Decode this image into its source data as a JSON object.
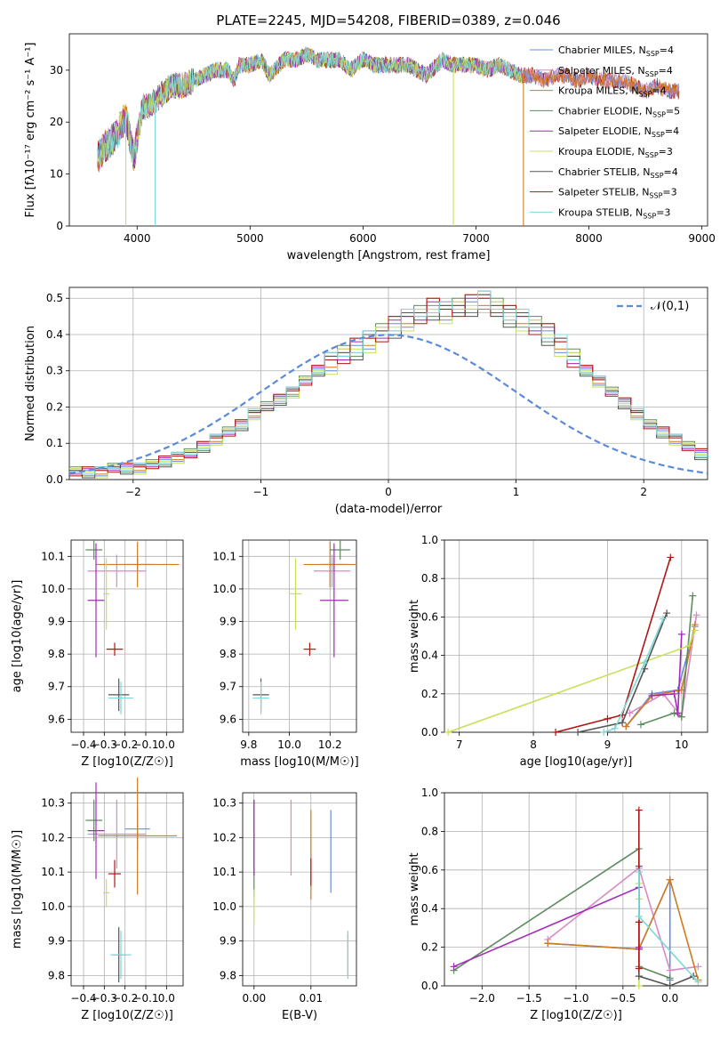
{
  "title": "PLATE=2245, MJD=54208, FIBERID=0389, z=0.046",
  "legend_labels": [
    "Chabrier MILES, N_SSP=4",
    "Salpeter MILES, N_SSP=4",
    "Kroupa MILES, N_SSP=4",
    "Chabrier ELODIE, N_SSP=5",
    "Salpeter ELODIE, N_SSP=4",
    "Kroupa ELODIE, N_SSP=3",
    "Chabrier STELIB, N_SSP=4",
    "Salpeter STELIB, N_SSP=3",
    "Kroupa STELIB, N_SSP=3"
  ],
  "colors": [
    "#6a8bdc",
    "#d98ac4",
    "#cf7b1f",
    "#5e8c5e",
    "#a22bb5",
    "#c8e05a",
    "#555555",
    "#b31414",
    "#7fd8d8"
  ],
  "chart_data": [
    {
      "type": "line",
      "id": "spectrum",
      "xlabel": "wavelength [Angstrom, rest frame]",
      "ylabel": "Flux [fλ10⁻¹⁷ erg cm⁻² s⁻¹ A⁻¹]",
      "xlim": [
        3400,
        9050
      ],
      "ylim": [
        0,
        37
      ],
      "xticks": [
        4000,
        5000,
        6000,
        7000,
        8000,
        9000
      ],
      "yticks": [
        0,
        10,
        20,
        30
      ],
      "grid": false,
      "legend": "right",
      "data_x": [
        3650,
        3700,
        3800,
        3900,
        3970,
        4050,
        4100,
        4200,
        4300,
        4400,
        4500,
        4600,
        4700,
        4800,
        4861,
        4900,
        5000,
        5100,
        5175,
        5300,
        5400,
        5500,
        5600,
        5700,
        5800,
        5890,
        6000,
        6100,
        6200,
        6300,
        6400,
        6563,
        6700,
        6800,
        6900,
        7000,
        7100,
        7200,
        7300,
        7400,
        7500,
        7600,
        7700,
        7800,
        7900,
        8000,
        8100,
        8200,
        8300,
        8400,
        8500,
        8600,
        8700,
        8800
      ],
      "data_y": [
        13,
        15,
        17,
        21,
        13,
        23,
        23,
        25,
        27,
        27,
        28,
        29,
        30,
        30,
        28,
        31,
        31,
        32,
        29,
        32,
        32,
        33,
        32,
        32,
        32,
        30,
        32,
        31,
        31,
        31,
        31,
        29,
        32,
        31,
        31,
        31,
        30,
        31,
        30,
        29,
        29,
        28,
        29,
        29,
        28,
        29,
        28,
        28,
        28,
        27,
        26,
        27,
        26,
        26
      ],
      "drops": [
        {
          "series": "Kroupa ELODIE, N_SSP=3",
          "x": 3900
        },
        {
          "series": "Kroupa STELIB, N_SSP=3",
          "x": 4160
        },
        {
          "series": "Kroupa ELODIE, N_SSP=3",
          "x": 6800
        },
        {
          "series": "Kroupa MILES, N_SSP=4",
          "x": 7420
        }
      ]
    },
    {
      "type": "step-histogram",
      "id": "residuals",
      "xlabel": "(data-model)/error",
      "ylabel": "Normed distribution",
      "xlim": [
        -2.5,
        2.5
      ],
      "ylim": [
        0,
        0.53
      ],
      "xticks": [
        -2,
        -1,
        0,
        1,
        2
      ],
      "yticks": [
        0,
        0.1,
        0.2,
        0.3,
        0.4,
        0.5
      ],
      "grid": true,
      "legend_label": "𝒩(0,1)",
      "legend": "top-right",
      "bin_width": 0.1,
      "bin_start": -2.5,
      "histogram": [
        0.02,
        0.02,
        0.02,
        0.03,
        0.03,
        0.03,
        0.04,
        0.05,
        0.06,
        0.07,
        0.09,
        0.11,
        0.13,
        0.15,
        0.18,
        0.2,
        0.22,
        0.24,
        0.27,
        0.3,
        0.32,
        0.34,
        0.36,
        0.38,
        0.4,
        0.42,
        0.44,
        0.45,
        0.47,
        0.46,
        0.47,
        0.48,
        0.49,
        0.47,
        0.45,
        0.44,
        0.42,
        0.4,
        0.37,
        0.33,
        0.3,
        0.27,
        0.24,
        0.21,
        0.18,
        0.15,
        0.13,
        0.11,
        0.09,
        0.07
      ]
    },
    {
      "type": "scatter-errorbar",
      "id": "age-vs-Z",
      "xlabel": "Z [log10(Z/Z☉)]",
      "ylabel": "age  [log10(age/yr)]",
      "xlim": [
        -0.46,
        0.08
      ],
      "ylim": [
        9.56,
        10.15
      ],
      "xticks": [
        -0.4,
        -0.3,
        -0.2,
        -0.1,
        0.0
      ],
      "yticks": [
        9.6,
        9.7,
        9.8,
        9.9,
        10.0,
        10.1
      ],
      "grid": true,
      "points": [
        {
          "c": 0,
          "x": -0.14,
          "y": 10.075,
          "xe": 0.07,
          "ye": 0.02
        },
        {
          "c": 1,
          "x": -0.24,
          "y": 10.055,
          "xe": 0.14,
          "ye": 0.05
        },
        {
          "c": 2,
          "x": -0.14,
          "y": 10.075,
          "xe": 0.2,
          "ye": 0.07
        },
        {
          "c": 3,
          "x": -0.35,
          "y": 10.12,
          "xe": 0.04,
          "ye": 0.03
        },
        {
          "c": 4,
          "x": -0.34,
          "y": 9.965,
          "xe": 0.04,
          "ye": 0.175
        },
        {
          "c": 5,
          "x": -0.29,
          "y": 9.985,
          "xe": 0.015,
          "ye": 0.11
        },
        {
          "c": 6,
          "x": -0.23,
          "y": 9.675,
          "xe": 0.05,
          "ye": 0.05
        },
        {
          "c": 7,
          "x": -0.25,
          "y": 9.815,
          "xe": 0.04,
          "ye": 0.02
        },
        {
          "c": 8,
          "x": -0.22,
          "y": 9.665,
          "xe": 0.06,
          "ye": 0.05
        }
      ]
    },
    {
      "type": "scatter-errorbar",
      "id": "age-vs-mass",
      "xlabel": "mass [log10(M/M☉)]",
      "ylabel": "",
      "xlim": [
        9.77,
        10.33
      ],
      "ylim": [
        9.56,
        10.15
      ],
      "xticks": [
        9.8,
        10.0,
        10.2
      ],
      "yticks": [
        9.6,
        9.7,
        9.8,
        9.9,
        10.0,
        10.1
      ],
      "grid": true,
      "points": [
        {
          "c": 0,
          "x": 10.22,
          "y": 10.075,
          "xe": 0.06,
          "ye": 0.02
        },
        {
          "c": 1,
          "x": 10.21,
          "y": 10.055,
          "xe": 0.09,
          "ye": 0.05
        },
        {
          "c": 2,
          "x": 10.2,
          "y": 10.075,
          "xe": 0.13,
          "ye": 0.07
        },
        {
          "c": 3,
          "x": 10.25,
          "y": 10.12,
          "xe": 0.05,
          "ye": 0.03
        },
        {
          "c": 4,
          "x": 10.22,
          "y": 9.965,
          "xe": 0.07,
          "ye": 0.175
        },
        {
          "c": 5,
          "x": 10.03,
          "y": 9.985,
          "xe": 0.03,
          "ye": 0.11
        },
        {
          "c": 6,
          "x": 9.86,
          "y": 9.675,
          "xe": 0.04,
          "ye": 0.05
        },
        {
          "c": 7,
          "x": 10.1,
          "y": 9.815,
          "xe": 0.03,
          "ye": 0.02
        },
        {
          "c": 8,
          "x": 9.86,
          "y": 9.665,
          "xe": 0.04,
          "ye": 0.05
        }
      ]
    },
    {
      "type": "line",
      "id": "weight-vs-age",
      "xlabel": "age  [log10(age/yr)]",
      "ylabel": "mass weight",
      "xlim": [
        6.8,
        10.35
      ],
      "ylim": [
        0,
        1.0
      ],
      "xticks": [
        7,
        8,
        9,
        10
      ],
      "yticks": [
        0.0,
        0.2,
        0.4,
        0.6,
        0.8,
        1.0
      ],
      "grid": true,
      "series": [
        {
          "c": 0,
          "x": [
            9.25,
            9.6,
            9.95,
            10.18
          ],
          "y": [
            0.03,
            0.2,
            0.22,
            0.55
          ]
        },
        {
          "c": 1,
          "x": [
            9.3,
            9.75,
            10.0,
            10.2
          ],
          "y": [
            0.1,
            0.2,
            0.08,
            0.61
          ]
        },
        {
          "c": 2,
          "x": [
            9.25,
            9.6,
            10.0,
            10.18
          ],
          "y": [
            0.03,
            0.19,
            0.22,
            0.56
          ]
        },
        {
          "c": 3,
          "x": [
            9.45,
            9.9,
            10.0,
            10.15
          ],
          "y": [
            0.04,
            0.1,
            0.08,
            0.71
          ]
        },
        {
          "c": 4,
          "x": [
            9.6,
            9.9,
            9.95,
            10.0
          ],
          "y": [
            0.19,
            0.2,
            0.1,
            0.51
          ]
        },
        {
          "c": 5,
          "x": [
            6.85,
            10.1,
            10.18
          ],
          "y": [
            0.0,
            0.45,
            0.53
          ]
        },
        {
          "c": 6,
          "x": [
            8.6,
            9.2,
            9.5,
            9.8
          ],
          "y": [
            0.0,
            0.05,
            0.33,
            0.62
          ]
        },
        {
          "c": 7,
          "x": [
            8.3,
            9.0,
            9.2,
            9.85
          ],
          "y": [
            0.0,
            0.07,
            0.09,
            0.91
          ]
        },
        {
          "c": 8,
          "x": [
            8.95,
            9.1,
            9.5,
            9.75
          ],
          "y": [
            0.0,
            0.02,
            0.36,
            0.59
          ]
        }
      ]
    },
    {
      "type": "scatter-errorbar",
      "id": "mass-vs-Z",
      "xlabel": "Z [log10(Z/Z☉)]",
      "ylabel": "mass [log10(M/M☉)]",
      "xlim": [
        -0.46,
        0.08
      ],
      "ylim": [
        9.77,
        10.33
      ],
      "xticks": [
        -0.4,
        -0.3,
        -0.2,
        -0.1,
        0.0
      ],
      "yticks": [
        9.8,
        9.9,
        10.0,
        10.1,
        10.2,
        10.3
      ],
      "grid": true,
      "points": [
        {
          "c": 0,
          "x": -0.14,
          "y": 10.225,
          "xe": 0.06,
          "ye": 0.06
        },
        {
          "c": 1,
          "x": -0.24,
          "y": 10.21,
          "xe": 0.14,
          "ye": 0.1
        },
        {
          "c": 2,
          "x": -0.14,
          "y": 10.205,
          "xe": 0.19,
          "ye": 0.17
        },
        {
          "c": 3,
          "x": -0.35,
          "y": 10.25,
          "xe": 0.04,
          "ye": 0.06
        },
        {
          "c": 4,
          "x": -0.34,
          "y": 10.22,
          "xe": 0.04,
          "ye": 0.14
        },
        {
          "c": 5,
          "x": -0.29,
          "y": 10.04,
          "xe": 0.015,
          "ye": 0.04
        },
        {
          "c": 6,
          "x": -0.23,
          "y": 9.86,
          "xe": 0.03,
          "ye": 0.08
        },
        {
          "c": 7,
          "x": -0.25,
          "y": 10.095,
          "xe": 0.03,
          "ye": 0.04
        },
        {
          "c": 8,
          "x": -0.22,
          "y": 9.86,
          "xe": 0.05,
          "ye": 0.07
        }
      ]
    },
    {
      "type": "scatter-errorbar",
      "id": "mass-vs-EBV",
      "xlabel": "E(B-V)",
      "ylabel": "",
      "xlim": [
        -0.002,
        0.018
      ],
      "ylim": [
        9.77,
        10.33
      ],
      "xticks": [
        0.0,
        0.01
      ],
      "yticks": [
        9.8,
        9.9,
        10.0,
        10.1,
        10.2,
        10.3
      ],
      "grid": true,
      "points": [
        {
          "c": 0,
          "x": 0.0135,
          "y": 10.16,
          "xe": 0,
          "ye": 0.12
        },
        {
          "c": 1,
          "x": 0.0065,
          "y": 10.2,
          "xe": 0,
          "ye": 0.11
        },
        {
          "c": 2,
          "x": 0.01,
          "y": 10.15,
          "xe": 0,
          "ye": 0.13
        },
        {
          "c": 3,
          "x": 0.0,
          "y": 10.17,
          "xe": 0,
          "ye": 0.14
        },
        {
          "c": 4,
          "x": 0.0,
          "y": 10.2,
          "xe": 0,
          "ye": 0.11
        },
        {
          "c": 5,
          "x": 0.0,
          "y": 10.0,
          "xe": 0,
          "ye": 0.05
        },
        {
          "c": 6,
          "x": 0.0165,
          "y": 9.86,
          "xe": 0,
          "ye": 0.06
        },
        {
          "c": 7,
          "x": 0.01,
          "y": 10.1,
          "xe": 0,
          "ye": 0.04
        },
        {
          "c": 8,
          "x": 0.0165,
          "y": 9.86,
          "xe": 0,
          "ye": 0.07
        }
      ]
    },
    {
      "type": "line",
      "id": "weight-vs-Z",
      "xlabel": "Z [log10(Z/Z☉)]",
      "ylabel": "mass weight",
      "xlim": [
        -2.4,
        0.4
      ],
      "ylim": [
        0,
        1.0
      ],
      "xticks": [
        -2.0,
        -1.5,
        -1.0,
        -0.5,
        0.0
      ],
      "yticks": [
        0.0,
        0.2,
        0.4,
        0.6,
        0.8,
        1.0
      ],
      "grid": true,
      "series": [
        {
          "c": 0,
          "x": [
            -1.3,
            -0.33,
            0.0,
            0.0
          ],
          "y": [
            0.22,
            0.19,
            0.55,
            0.03
          ]
        },
        {
          "c": 1,
          "x": [
            -1.3,
            -0.33,
            0.0,
            0.3
          ],
          "y": [
            0.24,
            0.61,
            0.08,
            0.1
          ]
        },
        {
          "c": 2,
          "x": [
            -1.3,
            -0.33,
            0.0,
            0.3
          ],
          "y": [
            0.22,
            0.19,
            0.55,
            0.03
          ]
        },
        {
          "c": 3,
          "x": [
            -2.3,
            -0.33,
            -0.33,
            0.0
          ],
          "y": [
            0.08,
            0.71,
            0.1,
            0.04
          ]
        },
        {
          "c": 4,
          "x": [
            -2.3,
            -0.33,
            -0.33,
            -0.33
          ],
          "y": [
            0.1,
            0.51,
            0.2,
            0.19
          ]
        },
        {
          "c": 5,
          "x": [
            -0.33,
            -0.33,
            -0.33
          ],
          "y": [
            0.0,
            0.45,
            0.53
          ]
        },
        {
          "c": 6,
          "x": [
            -0.33,
            -0.33,
            0.0,
            0.25
          ],
          "y": [
            0.62,
            0.05,
            0.0,
            0.05
          ]
        },
        {
          "c": 7,
          "x": [
            -0.33,
            -0.33,
            -0.33
          ],
          "y": [
            0.91,
            0.33,
            0.09
          ]
        },
        {
          "c": 8,
          "x": [
            -0.33,
            -0.33,
            0.3
          ],
          "y": [
            0.59,
            0.36,
            0.02
          ]
        }
      ]
    }
  ]
}
